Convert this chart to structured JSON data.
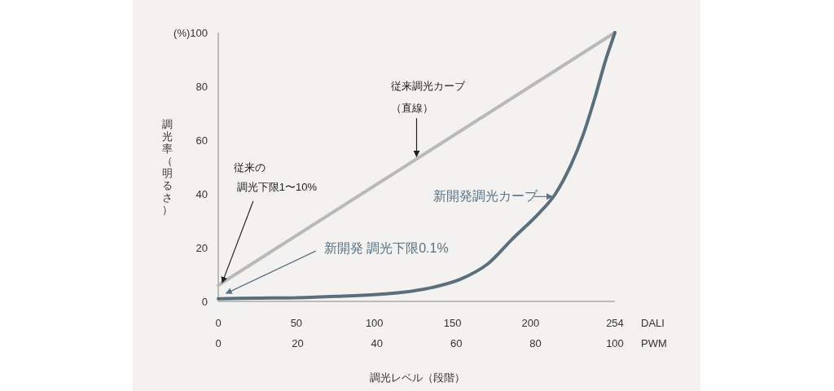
{
  "chart_data": {
    "type": "line",
    "xlabel": "調光レベル（段階）",
    "ylabel": "調光率（明るさ）",
    "x2label": "DALI",
    "xlim": [
      0,
      100
    ],
    "xticks": [
      0,
      20,
      40,
      60,
      80,
      100
    ],
    "x2lim": [
      0,
      254
    ],
    "x2ticks": [
      0,
      50,
      100,
      150,
      200,
      254
    ],
    "ylim": [
      0,
      100
    ],
    "yticks": [
      0,
      20,
      40,
      60,
      80,
      {
        "value": 100,
        "label": "(%)100"
      }
    ],
    "grid": false,
    "marker": "none",
    "series": [
      {
        "color": "#b9b9b9",
        "x": [
          0,
          100
        ],
        "values": [
          6,
          100
        ]
      },
      {
        "color": "#5b6e7b",
        "x": [
          0,
          10,
          20,
          30,
          40,
          47,
          54,
          61,
          68,
          74,
          81,
          85,
          89,
          92,
          95,
          97.5,
          100
        ],
        "values": [
          1,
          1.2,
          1.4,
          1.9,
          2.6,
          3.5,
          5.2,
          8.2,
          14,
          23,
          33,
          40,
          51,
          62,
          76,
          89,
          100
        ]
      }
    ],
    "annotations": [
      {
        "text": "従来調光カーブ（直線）",
        "x": 50,
        "y": 53
      },
      "従来の",
      {
        "text": "調光下限1〜10%",
        "x": 1,
        "y": 7
      },
      {
        "text": "新開発 調光下限0.1%",
        "x": 2,
        "y": 3
      },
      {
        "text": "新開発調光カーブ",
        "x": 85,
        "y": 39
      },
      "PWM"
    ]
  }
}
